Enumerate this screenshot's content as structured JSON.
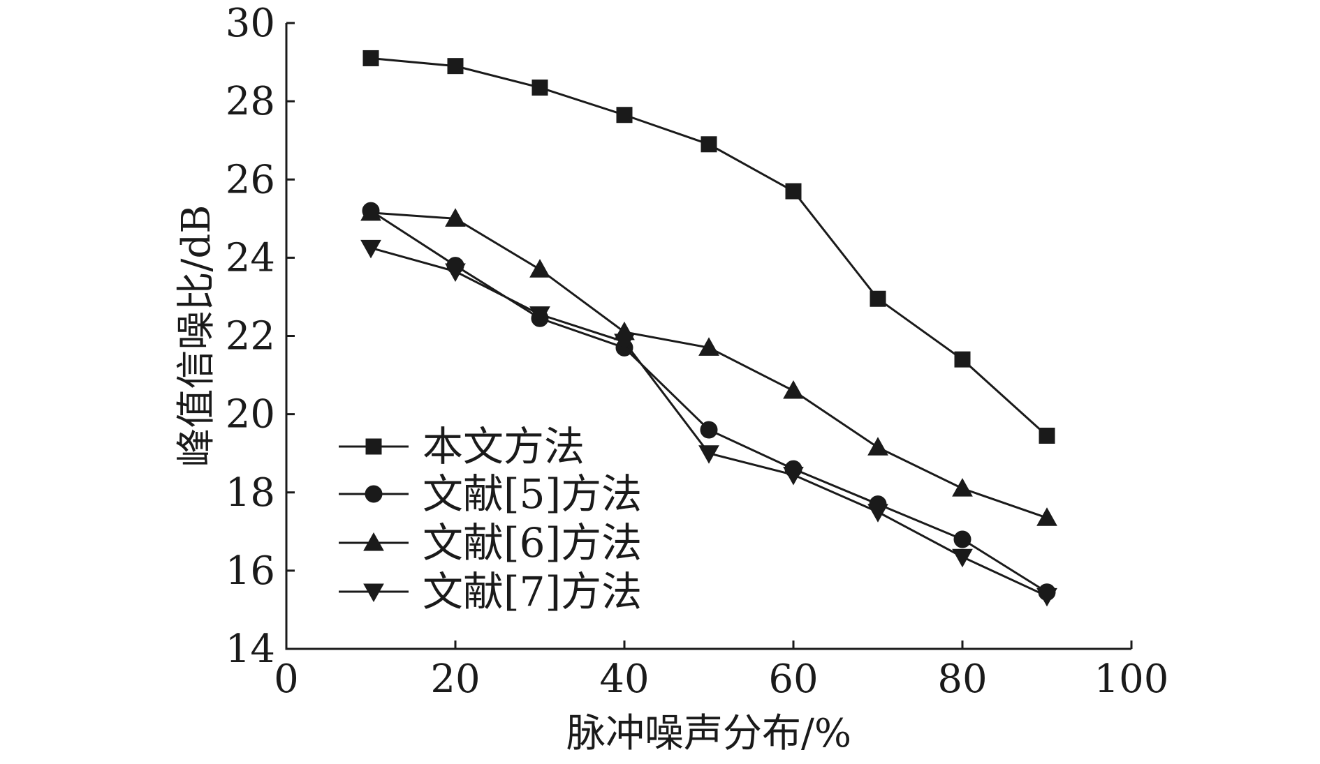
{
  "chart_data": {
    "type": "line",
    "xlabel": "脉冲噪声分布/%",
    "ylabel": "峰值信噪比/dB",
    "xlim": [
      0,
      100
    ],
    "ylim": [
      14,
      30
    ],
    "xticks": [
      0,
      20,
      40,
      60,
      80,
      100
    ],
    "yticks": [
      14,
      16,
      18,
      20,
      22,
      24,
      26,
      28,
      30
    ],
    "x": [
      10,
      20,
      30,
      40,
      50,
      60,
      70,
      80,
      90
    ],
    "grid": false,
    "legend_position": "bottom-left",
    "series": [
      {
        "name": "本文方法",
        "marker": "square",
        "values": [
          29.1,
          28.9,
          28.35,
          27.65,
          26.9,
          25.7,
          22.95,
          21.4,
          19.45
        ]
      },
      {
        "name": "文献[5]方法",
        "marker": "circle",
        "values": [
          25.2,
          23.8,
          22.45,
          21.7,
          19.6,
          18.6,
          17.7,
          16.8,
          15.45
        ]
      },
      {
        "name": "文献[6]方法",
        "marker": "triangle-up",
        "values": [
          25.15,
          25.0,
          23.7,
          22.1,
          21.7,
          20.6,
          19.15,
          18.1,
          17.35
        ]
      },
      {
        "name": "文献[7]方法",
        "marker": "triangle-down",
        "values": [
          24.25,
          23.65,
          22.55,
          21.85,
          19.0,
          18.45,
          17.5,
          16.35,
          15.35
        ]
      }
    ]
  }
}
